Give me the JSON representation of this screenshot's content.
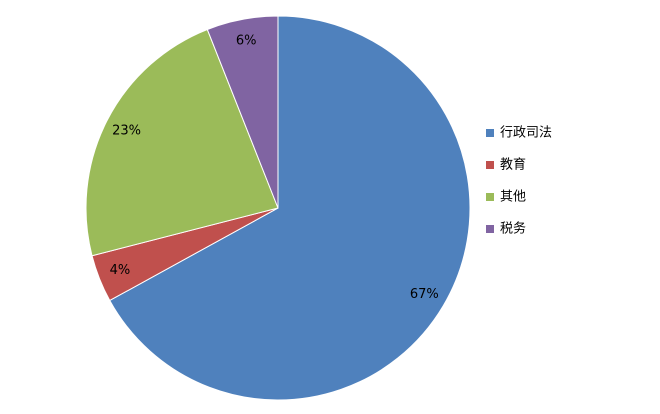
{
  "chart_data": {
    "type": "pie",
    "categories": [
      "行政司法",
      "教育",
      "其他",
      "税务"
    ],
    "values": [
      67,
      4,
      23,
      6
    ],
    "value_labels": [
      "67%",
      "4%",
      "23%",
      "6%"
    ],
    "colors": [
      "#4f81bd",
      "#c0504d",
      "#9bbb59",
      "#8064a2"
    ],
    "legend": "right"
  }
}
